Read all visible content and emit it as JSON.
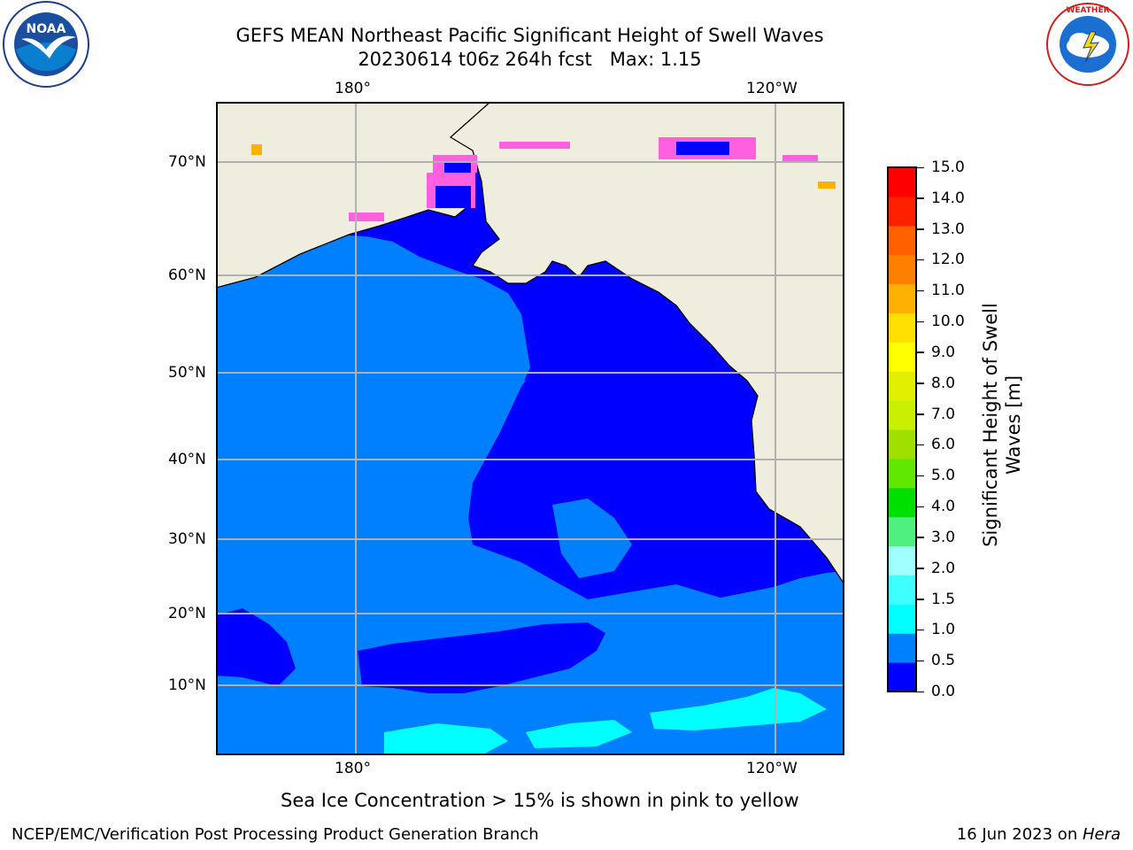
{
  "title_line1": "GEFS MEAN Northeast Pacific Significant Height of Swell Waves",
  "title_line2": "20230614 t06z 264h fcst   Max: 1.15",
  "lon_ticks": [
    "180°",
    "120°W"
  ],
  "lat_ticks": [
    "70°N",
    "60°N",
    "50°N",
    "40°N",
    "30°N",
    "20°N",
    "10°N"
  ],
  "colorbar": {
    "label_line1": "Significant Height of Swell",
    "label_line2": "Waves [m]",
    "ticks": [
      "15.0",
      "14.0",
      "13.0",
      "12.0",
      "11.0",
      "10.0",
      "9.0",
      "8.0",
      "7.0",
      "6.0",
      "5.0",
      "4.0",
      "3.0",
      "2.0",
      "1.5",
      "1.0",
      "0.5",
      "0.0"
    ],
    "colors": [
      "#0000ff",
      "#0080ff",
      "#00ffff",
      "#40ffff",
      "#a0ffff",
      "#50f080",
      "#00e000",
      "#60e800",
      "#a0e000",
      "#c8f000",
      "#e0f000",
      "#ffff00",
      "#ffe000",
      "#ffb000",
      "#ff8000",
      "#ff6000",
      "#ff2000",
      "#ff0000"
    ]
  },
  "caption": "Sea Ice Concentration > 15% is shown in pink to yellow",
  "footer_left": "NCEP/EMC/Verification Post Processing Product Generation Branch",
  "footer_right_prefix": "16 Jun 2023 on ",
  "footer_right_host": "Hera",
  "logos": {
    "noaa_text": "NOAA",
    "noaa_ring": "NATIONAL OCEANIC AND ATMOSPHERIC ADMINISTRATION · U.S. DEPARTMENT OF COMMERCE",
    "nws_ring": "NATIONAL WEATHER SERVICE"
  },
  "colors": {
    "land": "#efedde",
    "ocean_low": "#0000ff",
    "ocean_mid": "#0080ff",
    "ocean_high": "#00ffff",
    "grid": "#b0b0b0"
  }
}
